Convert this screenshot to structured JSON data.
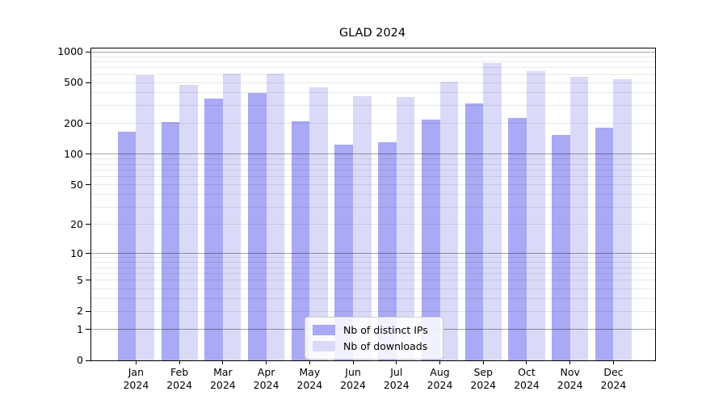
{
  "title": "GLAD 2024",
  "chart_data": {
    "type": "bar",
    "title": "GLAD 2024",
    "categories": [
      "Jan 2024",
      "Feb 2024",
      "Mar 2024",
      "Apr 2024",
      "May 2024",
      "Jun 2024",
      "Jul 2024",
      "Aug 2024",
      "Sep 2024",
      "Oct 2024",
      "Nov 2024",
      "Dec 2024"
    ],
    "series": [
      {
        "name": "Nb of distinct IPs",
        "color": "#a9a9f5",
        "values": [
          167,
          208,
          350,
          400,
          212,
          124,
          131,
          220,
          316,
          228,
          156,
          182
        ]
      },
      {
        "name": "Nb of downloads",
        "color": "#dadaf8",
        "values": [
          590,
          478,
          615,
          620,
          455,
          374,
          365,
          510,
          775,
          645,
          573,
          538
        ]
      }
    ],
    "yscale": "log1p",
    "ylim": [
      0,
      1080
    ],
    "yticks_labeled": [
      0,
      1,
      2,
      5,
      10,
      20,
      50,
      100,
      200,
      500,
      1000
    ],
    "grid_major": [
      1,
      10,
      100,
      1000
    ],
    "grid_minor": [
      2,
      3,
      4,
      5,
      6,
      7,
      8,
      9,
      20,
      30,
      40,
      50,
      60,
      70,
      80,
      90,
      200,
      300,
      400,
      500,
      600,
      700,
      800,
      900
    ],
    "grid": true,
    "legend_position": "lower center",
    "xlabel": "",
    "ylabel": ""
  },
  "legend": {
    "entries": [
      "Nb of distinct IPs",
      "Nb of downloads"
    ]
  },
  "colors": {
    "background": "#ffffff",
    "bar_distinct_ips": "#a9a9f5",
    "bar_downloads": "#dadaf8",
    "grid_minor": "rgba(0,0,0,0.085)",
    "grid_major": "rgba(0,0,0,0.36)",
    "spine": "#000000",
    "text": "#000000",
    "legend_border": "#cccccc"
  }
}
